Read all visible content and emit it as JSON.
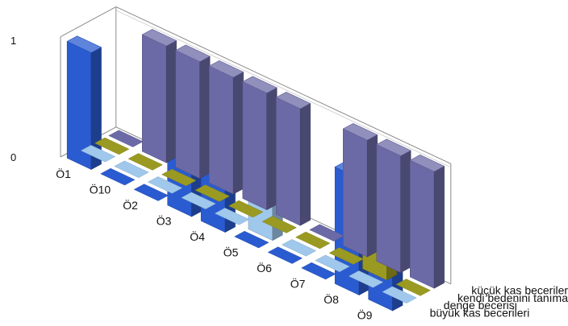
{
  "chart_data": {
    "type": "bar",
    "subtype": "3d-column",
    "title": "",
    "xlabel": "",
    "ylabel": "",
    "ylim": [
      0,
      1
    ],
    "y_ticks": [
      "0",
      "1"
    ],
    "categories": [
      "Ö1",
      "Ö10",
      "Ö2",
      "Ö3",
      "Ö4",
      "Ö5",
      "Ö6",
      "Ö7",
      "Ö8",
      "Ö9"
    ],
    "series": [
      {
        "name": "küçük kas becerileri",
        "color": "#6c6aa6",
        "values": [
          0,
          1,
          1,
          1,
          1,
          1,
          0,
          1,
          1,
          1
        ]
      },
      {
        "name": "kendi bedenini tanıma",
        "color": "#9a9a22",
        "values": [
          0,
          0,
          0,
          0,
          0,
          0,
          0,
          0,
          1,
          0
        ]
      },
      {
        "name": "denge becerisi",
        "color": "#9fc8ec",
        "values": [
          0,
          0,
          0,
          0,
          0,
          1,
          0,
          0,
          0,
          0
        ]
      },
      {
        "name": "büyük kas becerileri",
        "color": "#2a5bd0",
        "values": [
          1,
          0,
          0,
          1,
          1,
          0,
          0,
          0,
          1,
          1
        ]
      }
    ],
    "legend": "series labels along right depth axis",
    "grid": false
  }
}
